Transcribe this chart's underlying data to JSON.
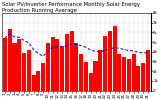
{
  "title": "Solar PV/Inverter Performance Monthly Solar Energy Production Running Average",
  "bars": [
    540,
    630,
    490,
    530,
    390,
    415,
    160,
    200,
    280,
    490,
    555,
    530,
    455,
    580,
    615,
    490,
    375,
    290,
    185,
    305,
    415,
    565,
    615,
    660,
    375,
    345,
    325,
    375,
    255,
    285,
    420
  ],
  "running_avg": [
    540,
    585,
    553,
    547,
    516,
    493,
    423,
    382,
    354,
    404,
    443,
    452,
    449,
    464,
    478,
    475,
    462,
    445,
    416,
    404,
    400,
    413,
    428,
    444,
    434,
    423,
    412,
    409,
    393,
    387,
    391
  ],
  "bar_color": "#ff0000",
  "avg_color": "#0000cd",
  "background_color": "#ffffff",
  "plot_bg_color": "#ffffff",
  "grid_color": "#999999",
  "ylim": [
    0,
    800
  ],
  "ytick_vals": [
    0,
    100,
    200,
    300,
    400,
    500,
    600,
    700,
    800
  ],
  "ytick_labels": [
    "0",
    "1k",
    "2k",
    "3k",
    "4k",
    "5k",
    "6k",
    "7k",
    "8k"
  ],
  "title_fontsize": 3.8,
  "tick_fontsize": 2.8,
  "figsize": [
    1.6,
    1.0
  ],
  "dpi": 100
}
